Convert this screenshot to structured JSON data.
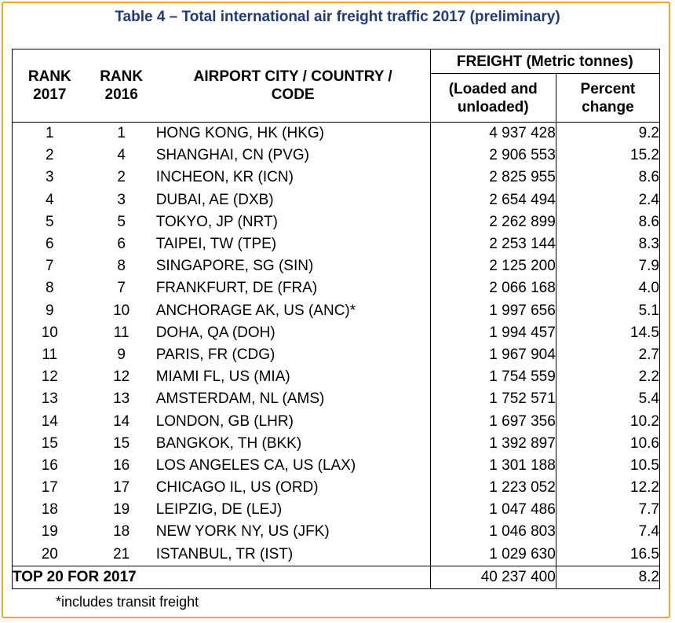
{
  "title": "Table 4 – Total international air freight traffic 2017 (preliminary)",
  "headers": {
    "rank2017": "RANK 2017",
    "rank2016": "RANK 2016",
    "city": "AIRPORT CITY / COUNTRY / CODE",
    "freight_group": "FREIGHT (Metric tonnes)",
    "freight": "(Loaded and unloaded)",
    "percent": "Percent change"
  },
  "rows": [
    {
      "rank2017": "1",
      "rank2016": "1",
      "city": "HONG KONG, HK (HKG)",
      "freight": "4 937 428",
      "percent": "9.2"
    },
    {
      "rank2017": "2",
      "rank2016": "4",
      "city": "SHANGHAI, CN (PVG)",
      "freight": "2 906 553",
      "percent": "15.2"
    },
    {
      "rank2017": "3",
      "rank2016": "2",
      "city": "INCHEON, KR (ICN)",
      "freight": "2 825 955",
      "percent": "8.6"
    },
    {
      "rank2017": "4",
      "rank2016": "3",
      "city": "DUBAI, AE (DXB)",
      "freight": "2 654 494",
      "percent": "2.4"
    },
    {
      "rank2017": "5",
      "rank2016": "5",
      "city": "TOKYO, JP (NRT)",
      "freight": "2 262 899",
      "percent": "8.6"
    },
    {
      "rank2017": "6",
      "rank2016": "6",
      "city": "TAIPEI, TW (TPE)",
      "freight": "2 253 144",
      "percent": "8.3"
    },
    {
      "rank2017": "7",
      "rank2016": "8",
      "city": "SINGAPORE, SG (SIN)",
      "freight": "2 125 200",
      "percent": "7.9"
    },
    {
      "rank2017": "8",
      "rank2016": "7",
      "city": "FRANKFURT, DE (FRA)",
      "freight": "2 066 168",
      "percent": "4.0"
    },
    {
      "rank2017": "9",
      "rank2016": "10",
      "city": "ANCHORAGE AK, US (ANC)*",
      "freight": "1 997 656",
      "percent": "5.1"
    },
    {
      "rank2017": "10",
      "rank2016": "11",
      "city": "DOHA, QA (DOH)",
      "freight": "1 994 457",
      "percent": "14.5"
    },
    {
      "rank2017": "11",
      "rank2016": "9",
      "city": "PARIS, FR (CDG)",
      "freight": "1 967 904",
      "percent": "2.7"
    },
    {
      "rank2017": "12",
      "rank2016": "12",
      "city": "MIAMI FL, US (MIA)",
      "freight": "1 754 559",
      "percent": "2.2"
    },
    {
      "rank2017": "13",
      "rank2016": "13",
      "city": "AMSTERDAM, NL (AMS)",
      "freight": "1 752 571",
      "percent": "5.4"
    },
    {
      "rank2017": "14",
      "rank2016": "14",
      "city": "LONDON, GB (LHR)",
      "freight": "1 697 356",
      "percent": "10.2"
    },
    {
      "rank2017": "15",
      "rank2016": "15",
      "city": "BANGKOK, TH (BKK)",
      "freight": "1 392 897",
      "percent": "10.6"
    },
    {
      "rank2017": "16",
      "rank2016": "16",
      "city": "LOS ANGELES CA, US (LAX)",
      "freight": "1 301 188",
      "percent": "10.5"
    },
    {
      "rank2017": "17",
      "rank2016": "17",
      "city": "CHICAGO IL, US (ORD)",
      "freight": "1 223 052",
      "percent": "12.2"
    },
    {
      "rank2017": "18",
      "rank2016": "19",
      "city": "LEIPZIG, DE (LEJ)",
      "freight": "1 047 486",
      "percent": "7.7"
    },
    {
      "rank2017": "19",
      "rank2016": "18",
      "city": "NEW YORK NY, US (JFK)",
      "freight": "1 046 803",
      "percent": "7.4"
    },
    {
      "rank2017": "20",
      "rank2016": "21",
      "city": "ISTANBUL, TR (IST)",
      "freight": "1 029 630",
      "percent": "16.5"
    }
  ],
  "total": {
    "label": "TOP 20 FOR 2017",
    "freight": "40 237 400",
    "percent": "8.2"
  },
  "footnote": "*includes transit freight",
  "colors": {
    "title": "#1f3b7a",
    "frame": "#f5a623"
  }
}
